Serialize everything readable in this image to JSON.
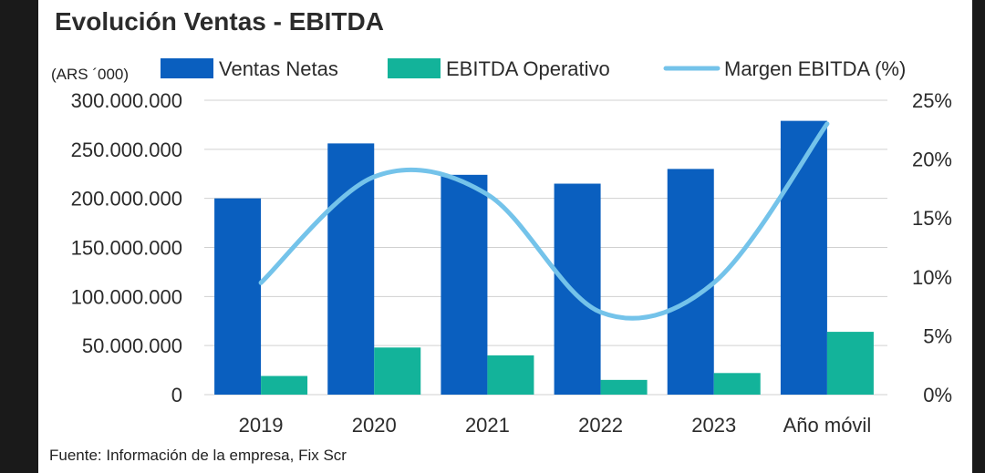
{
  "header": {
    "title": "Evolución Ventas - EBITDA",
    "unit": "(ARS ´000)"
  },
  "footer": {
    "source": "Fuente: Información de la empresa, Fix Scr"
  },
  "colors": {
    "ventas": "#0a5fbf",
    "ebitda": "#13b39a",
    "margen": "#74c3ea",
    "grid": "#d0d0d0"
  },
  "chart_data": {
    "type": "bar",
    "title": "Evolución Ventas - EBITDA",
    "categories": [
      "2019",
      "2020",
      "2021",
      "2022",
      "2023",
      "Año móvil"
    ],
    "series": [
      {
        "name": "Ventas Netas",
        "kind": "bar",
        "axis": "left",
        "values": [
          200000000,
          256000000,
          224000000,
          215000000,
          230000000,
          279000000
        ]
      },
      {
        "name": "EBITDA Operativo",
        "kind": "bar",
        "axis": "left",
        "values": [
          19000000,
          48000000,
          40000000,
          15000000,
          22000000,
          64000000
        ]
      },
      {
        "name": "Margen EBITDA (%)",
        "kind": "line",
        "axis": "right",
        "values": [
          9.5,
          18.5,
          17.0,
          7.0,
          9.5,
          23.0
        ]
      }
    ],
    "y_left": {
      "min": 0,
      "max": 300000000,
      "ticks": [
        "0",
        "50.000.000",
        "100.000.000",
        "150.000.000",
        "200.000.000",
        "250.000.000",
        "300.000.000"
      ]
    },
    "y_right": {
      "min": 0,
      "max": 25,
      "ticks": [
        "0%",
        "5%",
        "10%",
        "15%",
        "20%",
        "25%"
      ]
    },
    "legend_position": "top",
    "grid": true
  }
}
